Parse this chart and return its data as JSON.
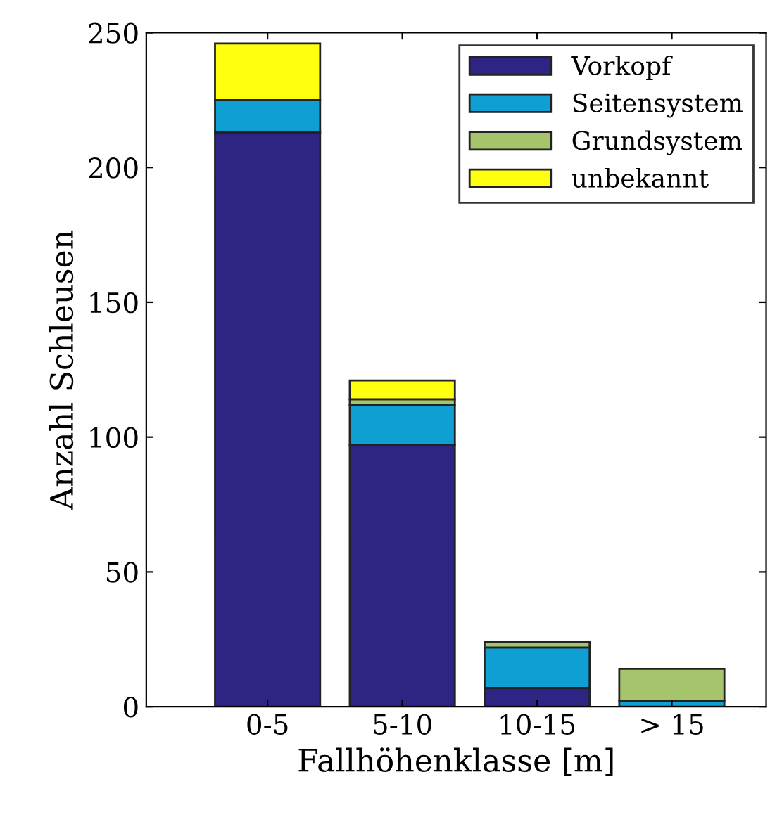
{
  "chart_data": {
    "type": "bar",
    "stacked": true,
    "xlabel": "Fallhöhenklasse [m]",
    "ylabel": "Anzahl Schleusen",
    "categories": [
      "0-5",
      "5-10",
      "10-15",
      "> 15"
    ],
    "series": [
      {
        "name": "Vorkopf",
        "color": "#2e2484",
        "values": [
          213,
          97,
          7,
          null
        ]
      },
      {
        "name": "Seitensystem",
        "color": "#0f9fd3",
        "values": [
          12,
          15,
          15,
          2
        ]
      },
      {
        "name": "Grundsystem",
        "color": "#a6c46c",
        "values": [
          null,
          2,
          2,
          12
        ]
      },
      {
        "name": "unbekannt",
        "color": "#ffff10",
        "values": [
          21,
          7,
          null,
          null
        ]
      }
    ],
    "ylim": [
      0,
      250
    ],
    "yticks": [
      0,
      50,
      100,
      150,
      200,
      250
    ],
    "legend": "top right",
    "grid": false
  }
}
